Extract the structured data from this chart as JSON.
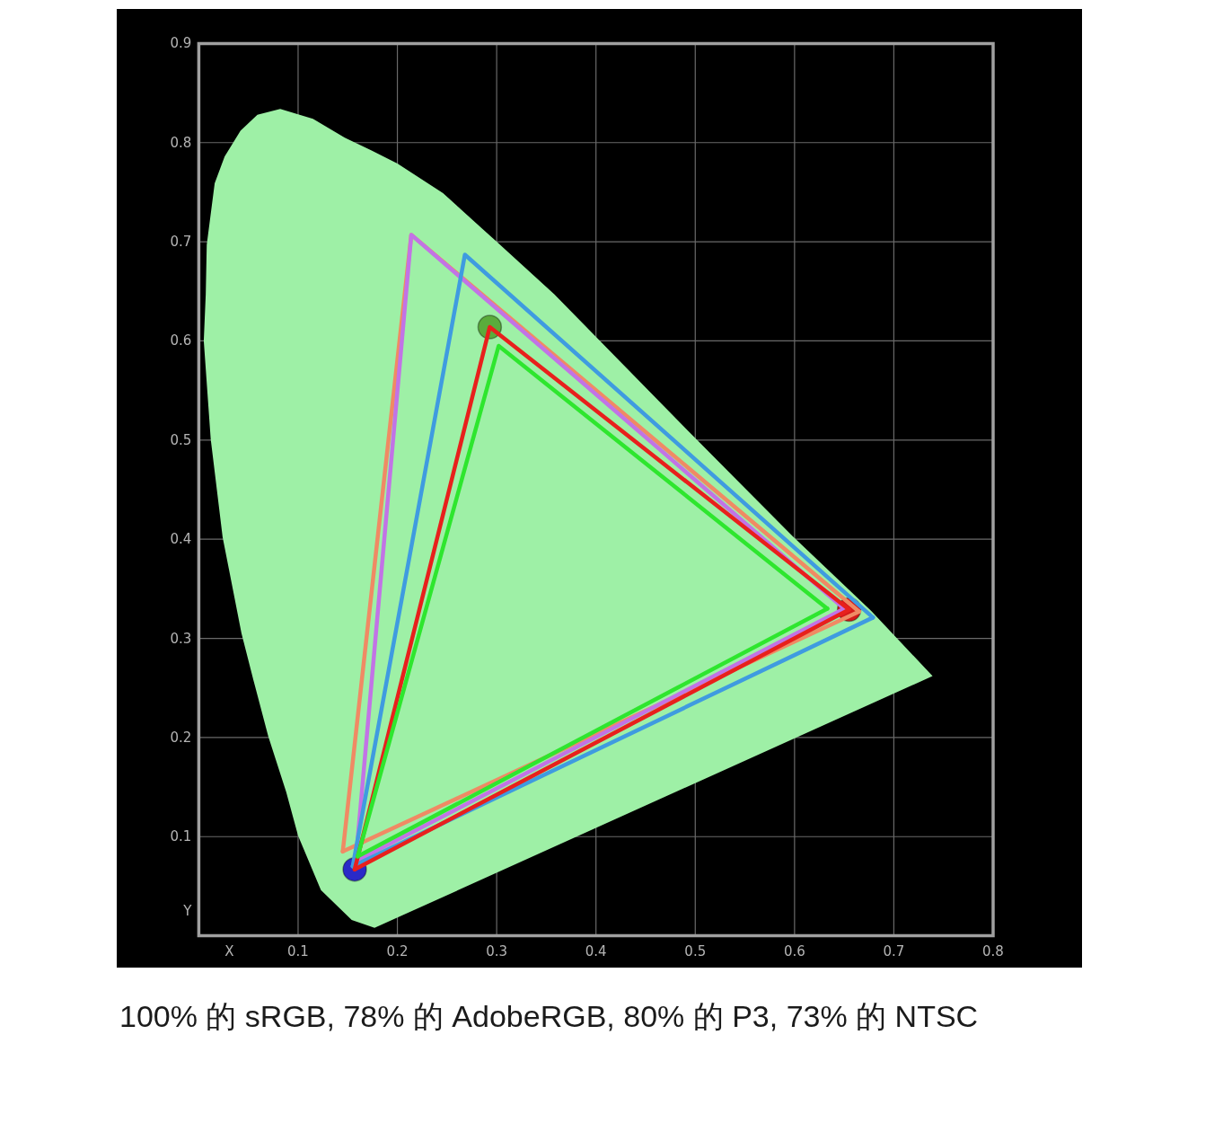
{
  "chart_data": {
    "type": "line",
    "xlabel": "X",
    "ylabel": "Y",
    "xlim": [
      0,
      0.8
    ],
    "ylim": [
      0,
      0.9
    ],
    "xticks": [
      0.1,
      0.2,
      0.3,
      0.4,
      0.5,
      0.6,
      0.7,
      0.8
    ],
    "yticks": [
      0.1,
      0.2,
      0.3,
      0.4,
      0.5,
      0.6,
      0.7,
      0.8,
      0.9
    ],
    "grid": true,
    "annotations": [
      "100% 的 sRGB, 78% 的 AdobeRGB, 80% 的 P3, 73% 的 NTSC"
    ],
    "series": [
      {
        "type": "area",
        "color": "#9ef0a6",
        "x": [
          0.177,
          0.154,
          0.123,
          0.1,
          0.088,
          0.07,
          0.055,
          0.043,
          0.024,
          0.012,
          0.005,
          0.007,
          0.008,
          0.016,
          0.026,
          0.042,
          0.059,
          0.082,
          0.115,
          0.147,
          0.174,
          0.2,
          0.246,
          0.3,
          0.358,
          0.499,
          0.598,
          0.677,
          0.739,
          0.177
        ],
        "values": [
          0.008,
          0.016,
          0.046,
          0.101,
          0.145,
          0.201,
          0.258,
          0.305,
          0.402,
          0.501,
          0.6,
          0.647,
          0.697,
          0.759,
          0.786,
          0.812,
          0.828,
          0.834,
          0.824,
          0.805,
          0.792,
          0.779,
          0.749,
          0.7,
          0.647,
          0.503,
          0.403,
          0.328,
          0.262,
          0.008
        ]
      },
      {
        "type": "scatter",
        "x": [
          0.293,
          0.655,
          0.157
        ],
        "values": [
          0.614,
          0.329,
          0.067
        ],
        "colors": [
          "#5aac3c",
          "#d41a1a",
          "#2a2ac8"
        ]
      },
      {
        "color": "#f08a64",
        "x": [
          0.145,
          0.214,
          0.665
        ],
        "values": [
          0.085,
          0.707,
          0.327
        ]
      },
      {
        "color": "#f08a64",
        "x": [
          0.145,
          0.665
        ],
        "values": [
          0.085,
          0.327
        ]
      },
      {
        "color": "#c273e6",
        "x": [
          0.158,
          0.214,
          0.65
        ],
        "values": [
          0.075,
          0.707,
          0.33
        ]
      },
      {
        "color": "#c273e6",
        "x": [
          0.158,
          0.65
        ],
        "values": [
          0.075,
          0.33
        ]
      },
      {
        "color": "#3f9be0",
        "x": [
          0.155,
          0.268,
          0.679
        ],
        "values": [
          0.07,
          0.687,
          0.321
        ]
      },
      {
        "color": "#3f9be0",
        "x": [
          0.155,
          0.679
        ],
        "values": [
          0.07,
          0.321
        ]
      },
      {
        "color": "#e8201c",
        "x": [
          0.157,
          0.293,
          0.655
        ],
        "values": [
          0.067,
          0.614,
          0.329
        ]
      },
      {
        "color": "#e8201c",
        "x": [
          0.157,
          0.655
        ],
        "values": [
          0.067,
          0.329
        ]
      },
      {
        "color": "#2ee62e",
        "x": [
          0.16,
          0.302,
          0.633
        ],
        "values": [
          0.08,
          0.595,
          0.33
        ]
      },
      {
        "color": "#2ee62e",
        "x": [
          0.16,
          0.633
        ],
        "values": [
          0.08,
          0.33
        ]
      }
    ]
  }
}
